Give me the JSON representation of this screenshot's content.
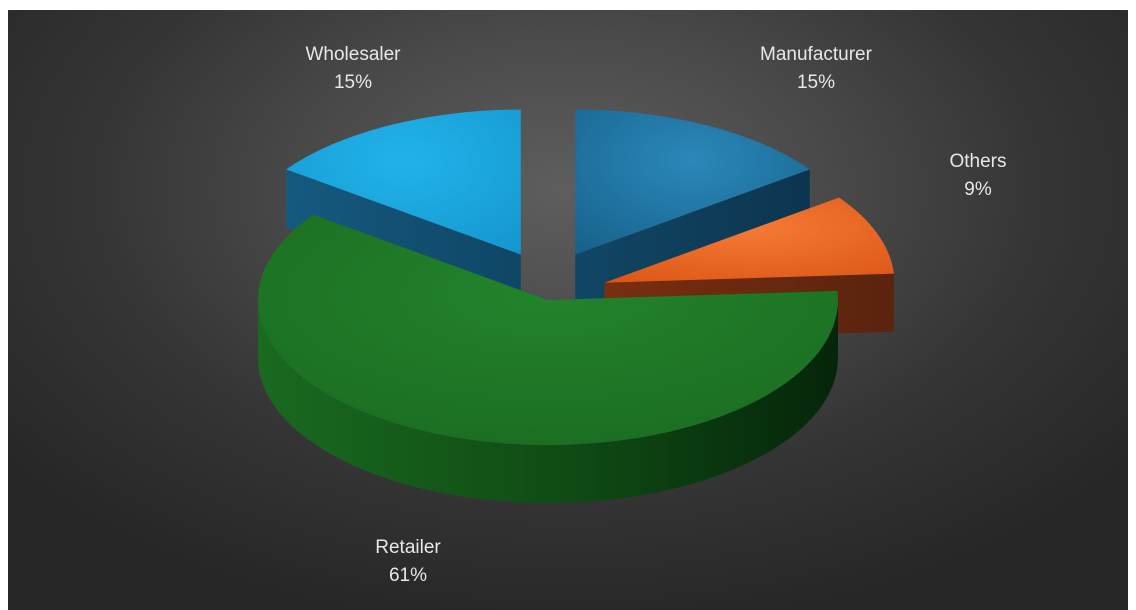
{
  "chart_data": {
    "type": "pie",
    "style": "3d-exploded",
    "title": "",
    "legend": "none",
    "slices": [
      {
        "category": "Manufacturer",
        "value": 15,
        "label": "15%",
        "color": "#1b6f9d"
      },
      {
        "category": "Others",
        "value": 9,
        "label": "9%",
        "color": "#e8621f"
      },
      {
        "category": "Retailer",
        "value": 61,
        "label": "61%",
        "color": "#1f7a26"
      },
      {
        "category": "Wholesaler",
        "value": 15,
        "label": "15%",
        "color": "#1aa6e0"
      }
    ],
    "background_color": "#404040",
    "label_color": "#e8e8e8"
  }
}
